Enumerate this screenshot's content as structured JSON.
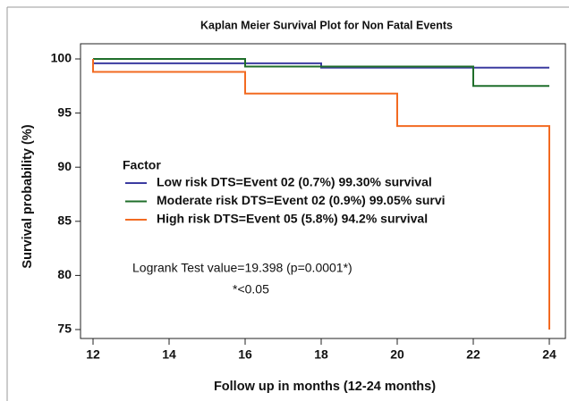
{
  "chart_data": {
    "type": "line",
    "step": "post",
    "title": "Kaplan Meier Survival Plot for Non Fatal Events",
    "x_label": "Follow up in months (12-24 months)",
    "y_label": "Survival probability (%)",
    "legend_title": "Factor",
    "xlim": [
      12,
      24
    ],
    "xticks": [
      12,
      14,
      16,
      18,
      20,
      22,
      24
    ],
    "ylim": [
      75,
      100
    ],
    "yticks": [
      75,
      80,
      85,
      90,
      95,
      100
    ],
    "series": [
      {
        "name": "Low risk DTS=Event 02 (0.7%) 99.30% survival",
        "color": "#3b3ba0",
        "x": [
          12,
          18,
          24
        ],
        "values": [
          99.6,
          99.2,
          99.2
        ]
      },
      {
        "name": "Moderate risk DTS=Event 02 (0.9%) 99.05% survi",
        "color": "#1f6e2a",
        "x": [
          12,
          16,
          22,
          24
        ],
        "values": [
          100,
          99.3,
          97.5,
          97.5
        ]
      },
      {
        "name": "High risk DTS=Event 05 (5.8%) 94.2% survival",
        "color": "#f26a21",
        "x": [
          12,
          12,
          16,
          20,
          24,
          24
        ],
        "values": [
          100,
          98.8,
          96.8,
          93.8,
          93.8,
          75
        ]
      }
    ],
    "annotations": [
      "Logrank Test value=19.398 (p=0.0001*)",
      "*<0.05"
    ]
  }
}
